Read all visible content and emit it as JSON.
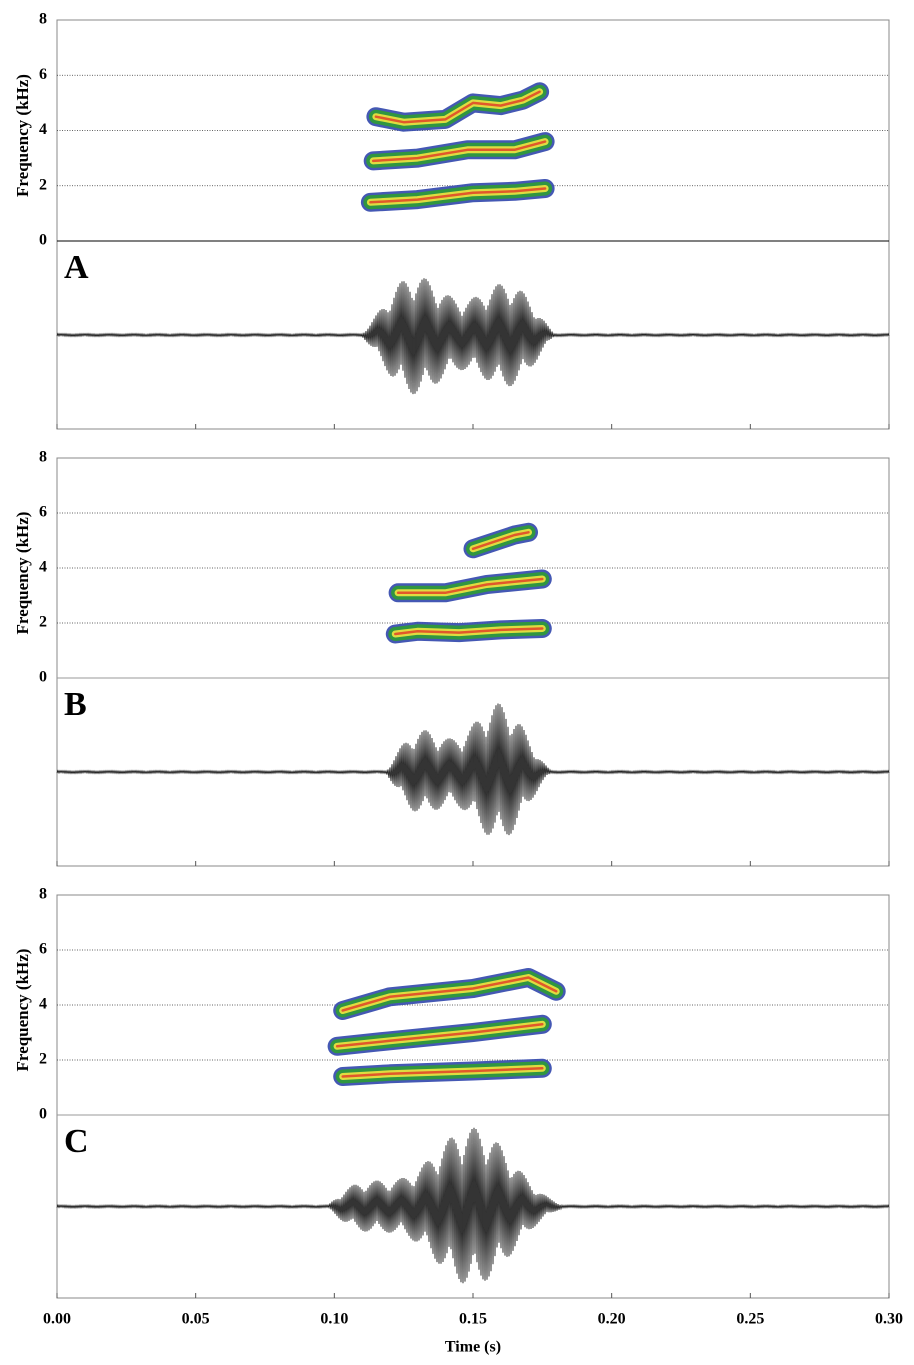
{
  "chart_data": [
    {
      "type": "spectrogram",
      "panel": "A",
      "ylabel": "Frequency (kHz)",
      "ylim": [
        0,
        8
      ],
      "yticks": [
        0,
        2,
        4,
        6,
        8
      ],
      "grid": true,
      "color": "#2f9a3a",
      "xlim": [
        0,
        0.3
      ],
      "xticks": [
        0,
        0.05,
        0.1,
        0.15,
        0.2,
        0.25,
        0.3
      ],
      "harmonics": [
        {
          "x": [
            0.113,
            0.13,
            0.15,
            0.165,
            0.176
          ],
          "values": [
            1.4,
            1.5,
            1.75,
            1.8,
            1.9
          ]
        },
        {
          "x": [
            0.114,
            0.13,
            0.148,
            0.165,
            0.176
          ],
          "values": [
            2.9,
            3.0,
            3.3,
            3.3,
            3.6
          ]
        },
        {
          "x": [
            0.115,
            0.125,
            0.14,
            0.15,
            0.16,
            0.168,
            0.174
          ],
          "values": [
            4.5,
            4.3,
            4.4,
            5.0,
            4.9,
            5.1,
            5.4
          ]
        }
      ]
    },
    {
      "type": "spectrogram",
      "panel": "B",
      "ylabel": "Frequency (kHz)",
      "ylim": [
        0,
        8
      ],
      "yticks": [
        0,
        2,
        4,
        6,
        8
      ],
      "grid": true,
      "color": "#2f9a3a",
      "xlim": [
        0,
        0.3
      ],
      "xticks": [
        0,
        0.05,
        0.1,
        0.15,
        0.2,
        0.25,
        0.3
      ],
      "harmonics": [
        {
          "x": [
            0.122,
            0.13,
            0.145,
            0.16,
            0.175
          ],
          "values": [
            1.6,
            1.7,
            1.65,
            1.75,
            1.8
          ]
        },
        {
          "x": [
            0.123,
            0.14,
            0.155,
            0.175
          ],
          "values": [
            3.1,
            3.1,
            3.4,
            3.6
          ]
        },
        {
          "x": [
            0.15,
            0.165,
            0.17
          ],
          "values": [
            4.7,
            5.2,
            5.3
          ]
        }
      ]
    },
    {
      "type": "spectrogram",
      "panel": "C",
      "ylabel": "Frequency (kHz)",
      "ylim": [
        0,
        8
      ],
      "yticks": [
        0,
        2,
        4,
        6,
        8
      ],
      "grid": true,
      "color": "#2f9a3a",
      "xlim": [
        0,
        0.3
      ],
      "xlabel": "Time (s)",
      "xticks": [
        {
          "value": 0,
          "label": "0.00"
        },
        {
          "value": 0.05,
          "label": "0.05"
        },
        {
          "value": 0.1,
          "label": "0.10"
        },
        {
          "value": 0.15,
          "label": "0.15"
        },
        {
          "value": 0.2,
          "label": "0.20"
        },
        {
          "value": 0.25,
          "label": "0.25"
        },
        {
          "value": 0.3,
          "label": "0.30"
        }
      ],
      "harmonics": [
        {
          "x": [
            0.103,
            0.12,
            0.15,
            0.175
          ],
          "values": [
            1.4,
            1.5,
            1.6,
            1.7
          ]
        },
        {
          "x": [
            0.101,
            0.12,
            0.15,
            0.175
          ],
          "values": [
            2.5,
            2.7,
            3.0,
            3.3
          ]
        },
        {
          "x": [
            0.103,
            0.12,
            0.15,
            0.17,
            0.18
          ],
          "values": [
            3.8,
            4.3,
            4.6,
            5.0,
            4.5
          ]
        }
      ]
    }
  ]
}
